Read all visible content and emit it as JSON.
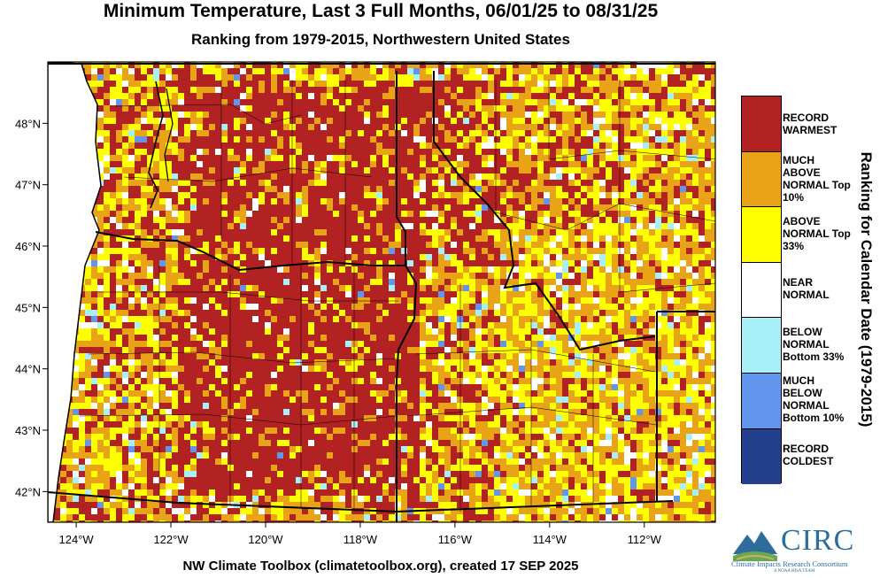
{
  "header": {
    "title": "Minimum Temperature, Last 3 Full Months, 06/01/25 to 08/31/25",
    "subtitle": "Ranking from 1979-2015, Northwestern United States"
  },
  "footer": {
    "credit": "NW Climate Toolbox (climatetoolbox.org), created 17 SEP 2025"
  },
  "map": {
    "lon_ticks": [
      "124°W",
      "122°W",
      "120°W",
      "118°W",
      "116°W",
      "114°W",
      "112°W"
    ],
    "lat_ticks": [
      "48°N",
      "47°N",
      "46°N",
      "45°N",
      "44°N",
      "43°N",
      "42°N"
    ],
    "lon_range": [
      -124.6,
      -110.5
    ],
    "lat_range": [
      41.5,
      49.0
    ]
  },
  "legend": {
    "title": "Ranking for Calendar Date (1979-2015)",
    "items": [
      {
        "label": "RECORD WARMEST",
        "color": "#b22222"
      },
      {
        "label": "MUCH ABOVE NORMAL Top 10%",
        "color": "#e8a317"
      },
      {
        "label": "ABOVE NORMAL Top 33%",
        "color": "#ffff00"
      },
      {
        "label": "NEAR NORMAL",
        "color": "#ffffff"
      },
      {
        "label": "BELOW NORMAL Bottom 33%",
        "color": "#a8f0f8"
      },
      {
        "label": "MUCH BELOW NORMAL Bottom 10%",
        "color": "#6495ed"
      },
      {
        "label": "RECORD COLDEST",
        "color": "#253f8f"
      }
    ]
  },
  "logo": {
    "name": "CIRC",
    "subtitle": "Climate Impacts Research Consortium",
    "tagline": "A NOAA RISA TEAM"
  }
}
